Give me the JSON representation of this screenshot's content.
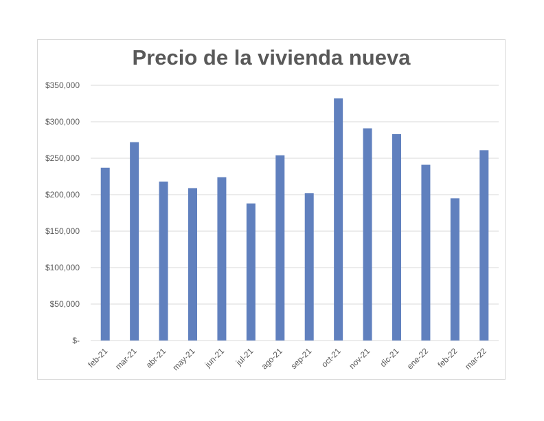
{
  "chart_data": {
    "type": "bar",
    "title": "Precio de la vivienda nueva",
    "xlabel": "",
    "ylabel": "",
    "categories": [
      "feb-21",
      "mar-21",
      "abr-21",
      "may-21",
      "jun-21",
      "jul-21",
      "ago-21",
      "sep-21",
      "oct-21",
      "nov-21",
      "dic-21",
      "ene-22",
      "feb-22",
      "mar-22"
    ],
    "values": [
      237000,
      272000,
      218000,
      209000,
      224000,
      188000,
      254000,
      202000,
      332000,
      291000,
      283000,
      241000,
      195000,
      261000
    ],
    "ylim": [
      0,
      350000
    ],
    "yticks": [
      0,
      50000,
      100000,
      150000,
      200000,
      250000,
      300000,
      350000
    ],
    "ytick_labels": [
      "$-",
      "$50,000",
      "$100,000",
      "$150,000",
      "$200,000",
      "$250,000",
      "$300,000",
      "$350,000"
    ],
    "grid": true,
    "legend": "none",
    "bar_color": "#6080BE",
    "grid_color": "#d9d9d9"
  }
}
